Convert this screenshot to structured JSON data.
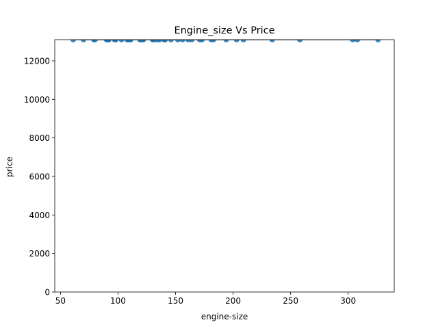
{
  "chart_data": {
    "type": "scatter",
    "title": "Engine_size Vs Price",
    "xlabel": "engine-size",
    "ylabel": "price",
    "xlim": [
      45,
      340
    ],
    "ylim": [
      0,
      13100
    ],
    "xticks": [
      50,
      100,
      150,
      200,
      250,
      300
    ],
    "yticks": [
      0,
      2000,
      4000,
      6000,
      8000,
      10000,
      12000
    ],
    "grid": false,
    "legend": "none",
    "colors": {
      "points": "#1f77b4",
      "regression_line": "#0d2b5e",
      "axes": "#000000",
      "background": "#ffffff"
    },
    "series": [
      {
        "x": [
          61,
          70,
          79,
          80,
          90,
          91,
          92,
          97,
          98,
          103,
          108,
          109,
          110,
          111,
          119,
          120,
          121,
          122,
          130,
          131,
          134,
          136,
          140,
          141,
          146,
          152,
          156,
          161,
          164,
          171,
          173,
          181,
          183,
          194,
          203,
          209,
          234,
          258,
          304,
          308,
          326
        ],
        "y": [
          13100,
          13100,
          13100,
          13100,
          13100,
          13100,
          13100,
          13100,
          13100,
          13100,
          13100,
          13100,
          13100,
          13100,
          13100,
          13100,
          13100,
          13100,
          13100,
          13100,
          13100,
          13100,
          13100,
          13100,
          13100,
          13100,
          13100,
          13100,
          13100,
          13100,
          13100,
          13100,
          13100,
          13100,
          13100,
          13100,
          13100,
          13100,
          13100,
          13100,
          13100
        ]
      }
    ],
    "regression_line": {
      "x": [
        61,
        326
      ],
      "y": [
        13100,
        13100
      ]
    }
  }
}
